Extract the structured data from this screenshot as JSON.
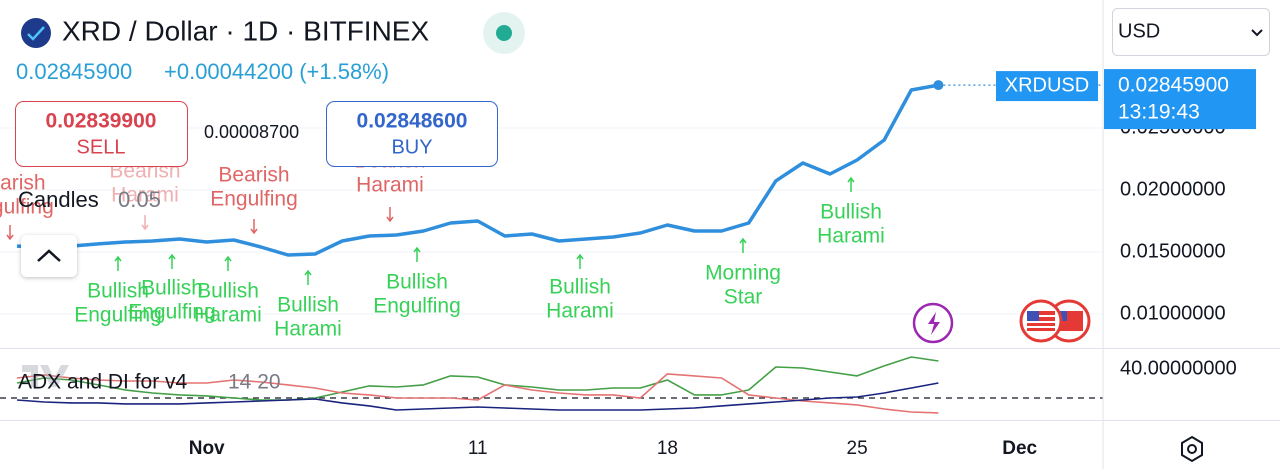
{
  "header": {
    "symbol": "XRD / Dollar · 1D · BITFINEX",
    "price": "0.02845900",
    "change": "+0.00044200 (+1.58%)",
    "sell_price": "0.02839900",
    "sell": "SELL",
    "spread": "0.00008700",
    "buy_price": "0.02848600",
    "buy": "BUY",
    "candles_label": "Candles",
    "candles_value": "0.05",
    "currency": "USD",
    "ticker": "XRDUSD",
    "last_price": "0.02845900",
    "countdown": "13:19:43"
  },
  "chart_data": [
    {
      "type": "line",
      "categories": [
        null,
        null,
        null,
        null,
        null,
        null,
        null,
        "Nov",
        null,
        null,
        null,
        null,
        null,
        null,
        null,
        null,
        null,
        "11",
        null,
        null,
        null,
        null,
        null,
        null,
        "18",
        null,
        null,
        null,
        null,
        null,
        null,
        "25",
        null,
        null,
        null,
        null,
        null,
        "Dec"
      ],
      "series": [
        {
          "color": "#2f8fdd",
          "values": [
            0.01548,
            0.0154,
            0.01548,
            0.01565,
            0.01581,
            0.01589,
            0.01605,
            0.01581,
            0.01597,
            0.0154,
            0.01476,
            0.01484,
            0.01589,
            0.01629,
            0.01637,
            0.01669,
            0.01734,
            0.0175,
            0.01629,
            0.01645,
            0.01589,
            0.01605,
            0.01621,
            0.01653,
            0.01718,
            0.01669,
            0.01669,
            0.01734,
            0.02073,
            0.02218,
            0.02129,
            0.02242,
            0.02403,
            0.02806,
            0.028459,
            null,
            null,
            null
          ]
        }
      ],
      "ylim": [
        0.00726,
        0.03532
      ],
      "yticks": [
        {
          "value": 0.01,
          "label": "0.01000000"
        },
        {
          "value": 0.015,
          "label": "0.01500000"
        },
        {
          "value": 0.02,
          "label": "0.02000000"
        },
        {
          "value": 0.025,
          "label": "0.02500000"
        }
      ],
      "grid": true,
      "annotations": [
        [
          "Bearish",
          "Engulfing"
        ],
        [
          "Bearish",
          "Harami"
        ],
        [
          "Bearish",
          "Engulfing"
        ],
        [
          "Bearish",
          "Harami"
        ],
        [
          "Bullish",
          "Engulfing"
        ],
        [
          "Bullish",
          "Engulfing"
        ],
        [
          "Bullish",
          "Harami"
        ],
        [
          "Bullish",
          "Harami"
        ],
        [
          "Bullish",
          "Engulfing"
        ],
        [
          "Bullish",
          "Harami"
        ],
        [
          "Morning",
          "Star"
        ],
        [
          "Bullish",
          "Harami"
        ]
      ]
    },
    {
      "type": "line",
      "title": "ADX and DI for v4",
      "subtitle": "14 20",
      "series": [
        {
          "color": "#43a047",
          "values": [
            30.3,
            33.8,
            32.4,
            29.0,
            25.5,
            23.4,
            22.1,
            21.4,
            20.0,
            18.6,
            18.6,
            20.0,
            24.1,
            28.3,
            27.6,
            29.0,
            35.2,
            34.5,
            29.0,
            27.6,
            25.5,
            25.5,
            26.9,
            26.9,
            32.4,
            22.1,
            22.1,
            25.5,
            41.4,
            40.7,
            37.9,
            35.2,
            42.1,
            48.3,
            45.5,
            null,
            null,
            null
          ]
        },
        {
          "color": "#e57373",
          "values": [
            33.8,
            35.9,
            33.8,
            32.4,
            31.7,
            31.7,
            30.3,
            30.3,
            32.4,
            31.0,
            29.0,
            26.9,
            23.4,
            22.1,
            20.0,
            20.0,
            20.0,
            18.6,
            29.0,
            25.5,
            23.4,
            22.1,
            22.1,
            20.0,
            36.6,
            35.2,
            33.8,
            22.1,
            20.0,
            17.9,
            16.6,
            15.2,
            12.4,
            10.3,
            9.7,
            null,
            null,
            null
          ]
        },
        {
          "color": "#1a237e",
          "values": [
            18.6,
            17.2,
            16.6,
            16.6,
            15.9,
            15.9,
            15.9,
            16.6,
            17.2,
            17.9,
            18.6,
            19.3,
            16.6,
            14.5,
            11.7,
            12.4,
            13.1,
            13.8,
            13.1,
            12.4,
            11.7,
            11.7,
            11.7,
            11.7,
            12.4,
            13.1,
            14.5,
            15.9,
            17.2,
            18.6,
            20.0,
            20.7,
            23.4,
            26.9,
            30.3,
            null,
            null,
            null
          ]
        }
      ],
      "reference_line": 20,
      "ylim": [
        4.8,
        53.1
      ],
      "yticks": [
        {
          "value": 40,
          "label": "40.00000000"
        }
      ]
    }
  ]
}
